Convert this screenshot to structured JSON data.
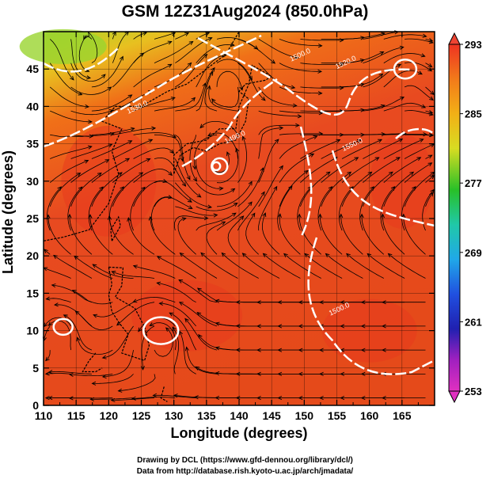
{
  "title": "GSM 12Z31Aug2024 (850.0hPa)",
  "xlabel": "Longitude (degrees)",
  "ylabel": "Latitude  (degrees)",
  "credit_line1": "Drawing by DCL (https://www.gfd-dennou.org/library/dcl/)",
  "credit_line2": "Data from http://database.rish.kyoto-u.ac.jp/arch/jmadata/",
  "chart_data": {
    "type": "heatmap",
    "variable": "temperature with streamlines and geopotential height contours",
    "x_ticks": [
      110,
      115,
      120,
      125,
      130,
      135,
      140,
      145,
      150,
      155,
      160,
      165
    ],
    "y_ticks": [
      0,
      5,
      10,
      15,
      20,
      25,
      30,
      35,
      40,
      45
    ],
    "xlim": [
      110,
      170
    ],
    "ylim": [
      0,
      50
    ],
    "colorbar": {
      "ticks": [
        293,
        285,
        277,
        269,
        261,
        253
      ],
      "range": [
        253,
        293
      ]
    },
    "contour_labels": [
      {
        "text": "1530.0",
        "lon": 123,
        "lat": 39
      },
      {
        "text": "1520.0",
        "lon": 155,
        "lat": 45
      },
      {
        "text": "1500.0",
        "lon": 148,
        "lat": 46
      },
      {
        "text": "1490.0",
        "lon": 138,
        "lat": 35
      },
      {
        "text": "1550.0",
        "lon": 156,
        "lat": 34
      },
      {
        "text": "1500.0",
        "lon": 154,
        "lat": 12
      }
    ]
  }
}
